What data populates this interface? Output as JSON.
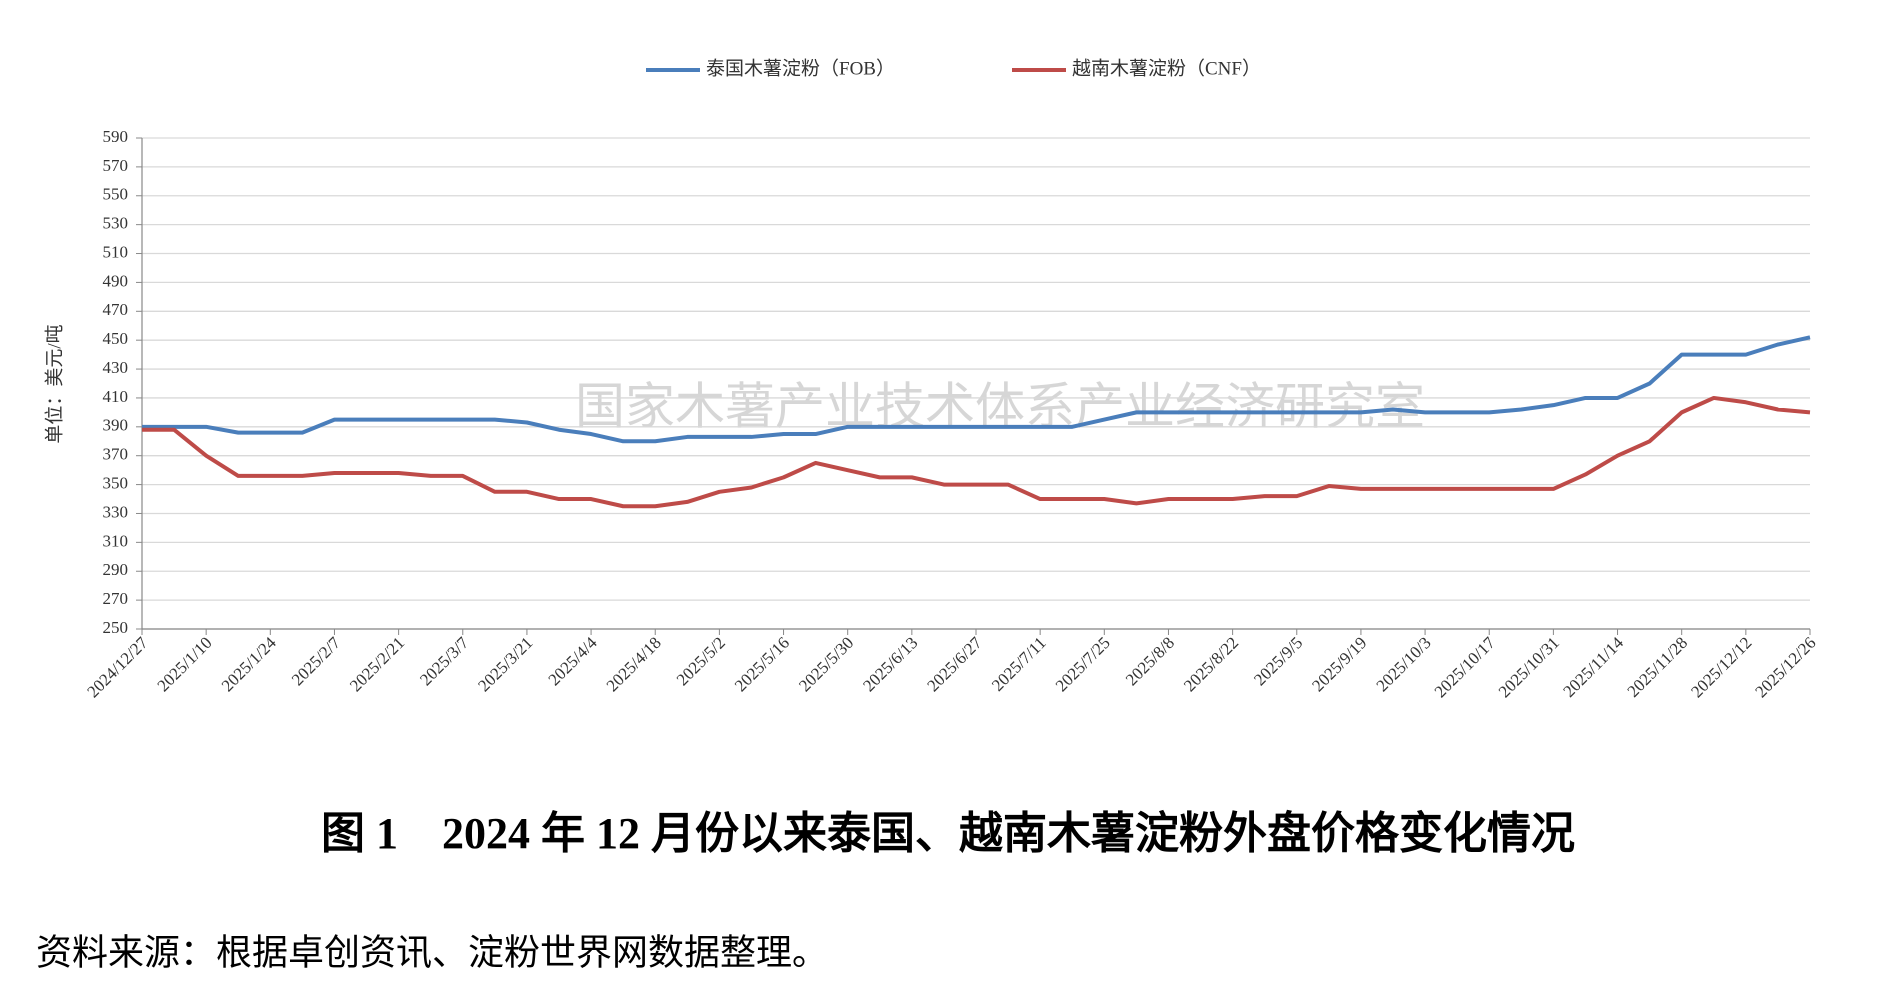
{
  "chart_data": {
    "type": "line",
    "y_label": "单位：美元/吨",
    "watermark": "国家木薯产业技术体系产业经济研究室",
    "caption": "图 1　2024 年 12 月份以来泰国、越南木薯淀粉外盘价格变化情况",
    "source": "资料来源：根据卓创资讯、淀粉世界网数据整理。",
    "categories": [
      "2024/12/27",
      null,
      "2025/1/10",
      null,
      "2025/1/24",
      null,
      "2025/2/7",
      null,
      "2025/2/21",
      null,
      "2025/3/7",
      null,
      "2025/3/21",
      null,
      "2025/4/4",
      null,
      "2025/4/18",
      null,
      "2025/5/2",
      null,
      "2025/5/16",
      null,
      "2025/5/30",
      null,
      "2025/6/13",
      null,
      "2025/6/27",
      null,
      "2025/7/11",
      null,
      "2025/7/25",
      null,
      "2025/8/8",
      null,
      "2025/8/22",
      null,
      "2025/9/5",
      null,
      "2025/9/19",
      null,
      "2025/10/3",
      null,
      "2025/10/17",
      null,
      "2025/10/31",
      null,
      "2025/11/14",
      null,
      "2025/11/28",
      null,
      "2025/12/12",
      null,
      "2025/12/26"
    ],
    "series": [
      {
        "name": "泰国木薯淀粉（FOB）",
        "color": "#4a7ebb",
        "values": [
          390,
          390,
          390,
          386,
          386,
          386,
          395,
          395,
          395,
          395,
          395,
          395,
          393,
          388,
          385,
          380,
          380,
          383,
          383,
          383,
          385,
          385,
          390,
          390,
          390,
          390,
          390,
          390,
          390,
          390,
          395,
          400,
          400,
          400,
          400,
          400,
          400,
          400,
          400,
          402,
          400,
          400,
          400,
          402,
          405,
          410,
          410,
          420,
          440,
          440,
          440,
          447,
          452
        ]
      },
      {
        "name": "越南木薯淀粉（CNF）",
        "color": "#be4b48",
        "values": [
          388,
          388,
          370,
          356,
          356,
          356,
          358,
          358,
          358,
          356,
          356,
          345,
          345,
          340,
          340,
          335,
          335,
          338,
          345,
          348,
          355,
          365,
          360,
          355,
          355,
          350,
          350,
          350,
          340,
          340,
          340,
          337,
          340,
          340,
          340,
          342,
          342,
          349,
          347,
          347,
          347,
          347,
          347,
          347,
          347,
          357,
          370,
          380,
          400,
          410,
          407,
          402,
          400
        ]
      }
    ],
    "ylim": [
      250,
      590
    ],
    "yticks": [
      250,
      270,
      290,
      310,
      330,
      350,
      370,
      390,
      410,
      430,
      450,
      470,
      490,
      510,
      530,
      550,
      570,
      590
    ],
    "grid": true,
    "legend": "top"
  }
}
